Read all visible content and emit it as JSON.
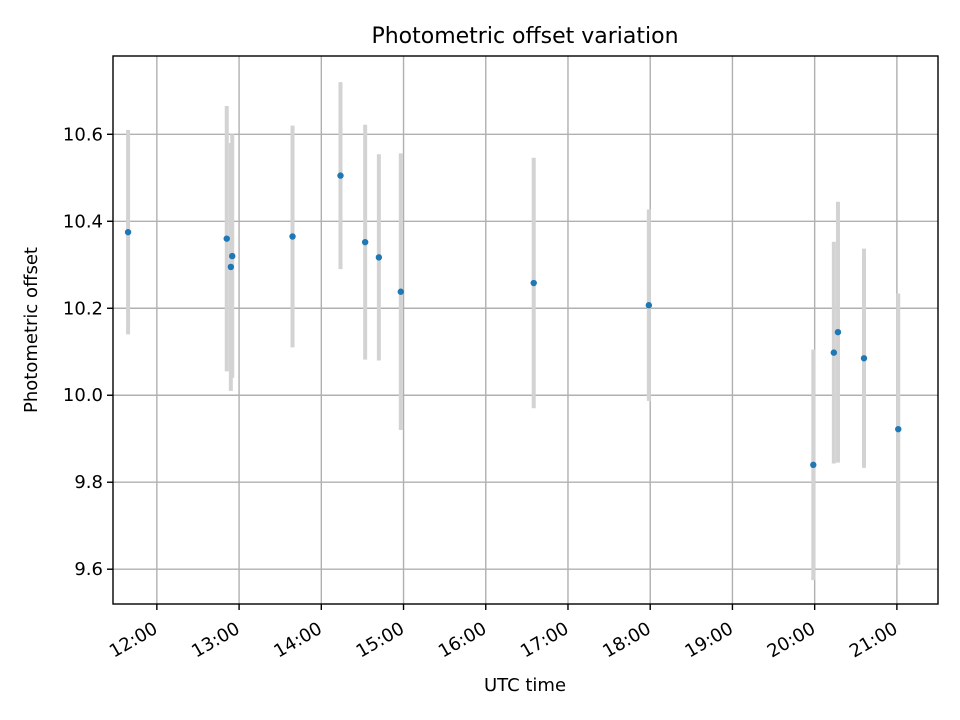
{
  "chart_data": {
    "type": "scatter",
    "title": "Photometric offset variation",
    "xlabel": "UTC time",
    "ylabel": "Photometric offset",
    "x_tick_labels": [
      "12:00",
      "13:00",
      "14:00",
      "15:00",
      "16:00",
      "17:00",
      "18:00",
      "19:00",
      "20:00",
      "21:00"
    ],
    "y_ticks": [
      9.6,
      9.8,
      10.0,
      10.2,
      10.4,
      10.6
    ],
    "y_tick_labels": [
      "9.6",
      "9.8",
      "10.0",
      "10.2",
      "10.4",
      "10.6"
    ],
    "xlim": [
      "11:28",
      "21:30"
    ],
    "ylim": [
      9.52,
      10.78
    ],
    "grid": true,
    "errorbar_color": "#d3d3d3",
    "marker_color": "#1f77b4",
    "points": [
      {
        "time": "11:39",
        "y": 10.375,
        "err": 0.235
      },
      {
        "time": "12:51",
        "y": 10.36,
        "err": 0.305
      },
      {
        "time": "12:54",
        "y": 10.295,
        "err": 0.285
      },
      {
        "time": "12:55",
        "y": 10.32,
        "err": 0.28
      },
      {
        "time": "13:39",
        "y": 10.365,
        "err": 0.255
      },
      {
        "time": "14:14",
        "y": 10.505,
        "err": 0.215
      },
      {
        "time": "14:32",
        "y": 10.352,
        "err": 0.27
      },
      {
        "time": "14:42",
        "y": 10.317,
        "err": 0.237
      },
      {
        "time": "14:58",
        "y": 10.238,
        "err": 0.318
      },
      {
        "time": "16:35",
        "y": 10.258,
        "err": 0.288
      },
      {
        "time": "17:59",
        "y": 10.207,
        "err": 0.22
      },
      {
        "time": "19:59",
        "y": 9.84,
        "err": 0.265
      },
      {
        "time": "20:14",
        "y": 10.098,
        "err": 0.255
      },
      {
        "time": "20:17",
        "y": 10.145,
        "err": 0.3
      },
      {
        "time": "20:36",
        "y": 10.085,
        "err": 0.252
      },
      {
        "time": "21:01",
        "y": 9.922,
        "err": 0.312
      }
    ]
  }
}
